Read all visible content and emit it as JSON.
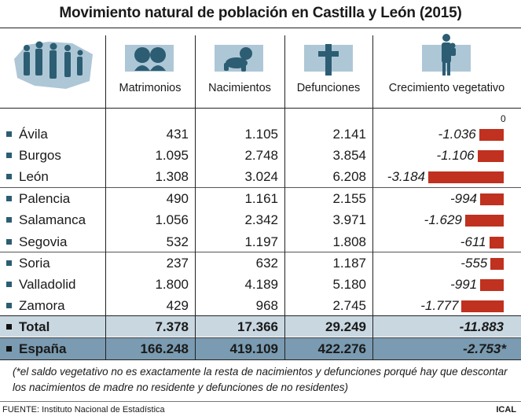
{
  "title": "Movimiento natural de población en Castilla y León (2015)",
  "icons": {
    "people": "people-silhouettes-icon",
    "couple": "couple-icon",
    "baby": "baby-icon",
    "cross": "cross-icon",
    "figure": "adult-with-child-icon"
  },
  "colors": {
    "bar": "#c0311f",
    "total_band": "#c9d7e1",
    "spain_band": "#7a9bb1",
    "icon_bg": "#aec7d6"
  },
  "chart_data": {
    "type": "table",
    "columns": [
      "Matrimonios",
      "Nacimientos",
      "Defunciones",
      "Crecimiento vegetativo"
    ],
    "rows": [
      {
        "name": "Ávila",
        "matrimonios": "431",
        "nacimientos": "1.105",
        "defunciones": "2.141",
        "crecimiento_label": "-1.036",
        "crecimiento": -1036
      },
      {
        "name": "Burgos",
        "matrimonios": "1.095",
        "nacimientos": "2.748",
        "defunciones": "3.854",
        "crecimiento_label": "-1.106",
        "crecimiento": -1106
      },
      {
        "name": "León",
        "matrimonios": "1.308",
        "nacimientos": "3.024",
        "defunciones": "6.208",
        "crecimiento_label": "-3.184",
        "crecimiento": -3184
      },
      {
        "name": "Palencia",
        "matrimonios": "490",
        "nacimientos": "1.161",
        "defunciones": "2.155",
        "crecimiento_label": "-994",
        "crecimiento": -994
      },
      {
        "name": "Salamanca",
        "matrimonios": "1.056",
        "nacimientos": "2.342",
        "defunciones": "3.971",
        "crecimiento_label": "-1.629",
        "crecimiento": -1629
      },
      {
        "name": "Segovia",
        "matrimonios": "532",
        "nacimientos": "1.197",
        "defunciones": "1.808",
        "crecimiento_label": "-611",
        "crecimiento": -611
      },
      {
        "name": "Soria",
        "matrimonios": "237",
        "nacimientos": "632",
        "defunciones": "1.187",
        "crecimiento_label": "-555",
        "crecimiento": -555
      },
      {
        "name": "Valladolid",
        "matrimonios": "1.800",
        "nacimientos": "4.189",
        "defunciones": "5.180",
        "crecimiento_label": "-991",
        "crecimiento": -991
      },
      {
        "name": "Zamora",
        "matrimonios": "429",
        "nacimientos": "968",
        "defunciones": "2.745",
        "crecimiento_label": "-1.777",
        "crecimiento": -1777
      }
    ],
    "total": {
      "name": "Total",
      "matrimonios": "7.378",
      "nacimientos": "17.366",
      "defunciones": "29.249",
      "crecimiento_label": "-11.883"
    },
    "spain": {
      "name": "España",
      "matrimonios": "166.248",
      "nacimientos": "419.109",
      "defunciones": "422.276",
      "crecimiento_label": "-2.753*"
    },
    "bar_axis_zero_label": "0",
    "bar_xlim": [
      -3184,
      0
    ]
  },
  "footnote": "(*el saldo vegetativo no es exactamente la resta de nacimientos y defunciones porqué hay que descontar los nacimientos de madre no residente y defunciones de no residentes)",
  "source": "FUENTE: Instituto Nacional de Estadística",
  "brand": "ICAL"
}
